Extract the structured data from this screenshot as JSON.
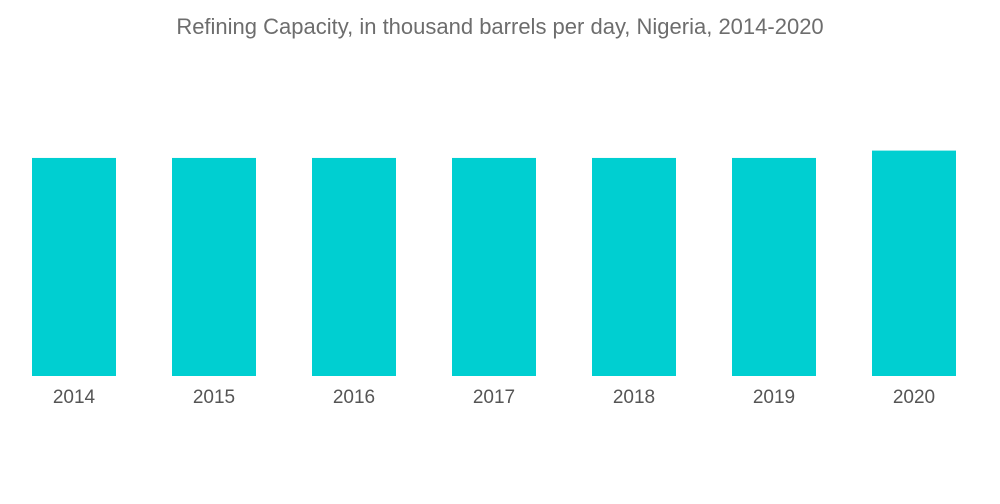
{
  "chart_data": {
    "type": "bar",
    "title": "Refining Capacity, in thousand barrels per day, Nigeria, 2014-2020",
    "xlabel": "",
    "ylabel": "",
    "categories": [
      "2014",
      "2015",
      "2016",
      "2017",
      "2018",
      "2019",
      "2020"
    ],
    "values": [
      445,
      445,
      445,
      445,
      445,
      445,
      460
    ],
    "ylim": [
      0,
      500
    ],
    "grid": false,
    "legend": "none",
    "color": "#00cfd1"
  }
}
